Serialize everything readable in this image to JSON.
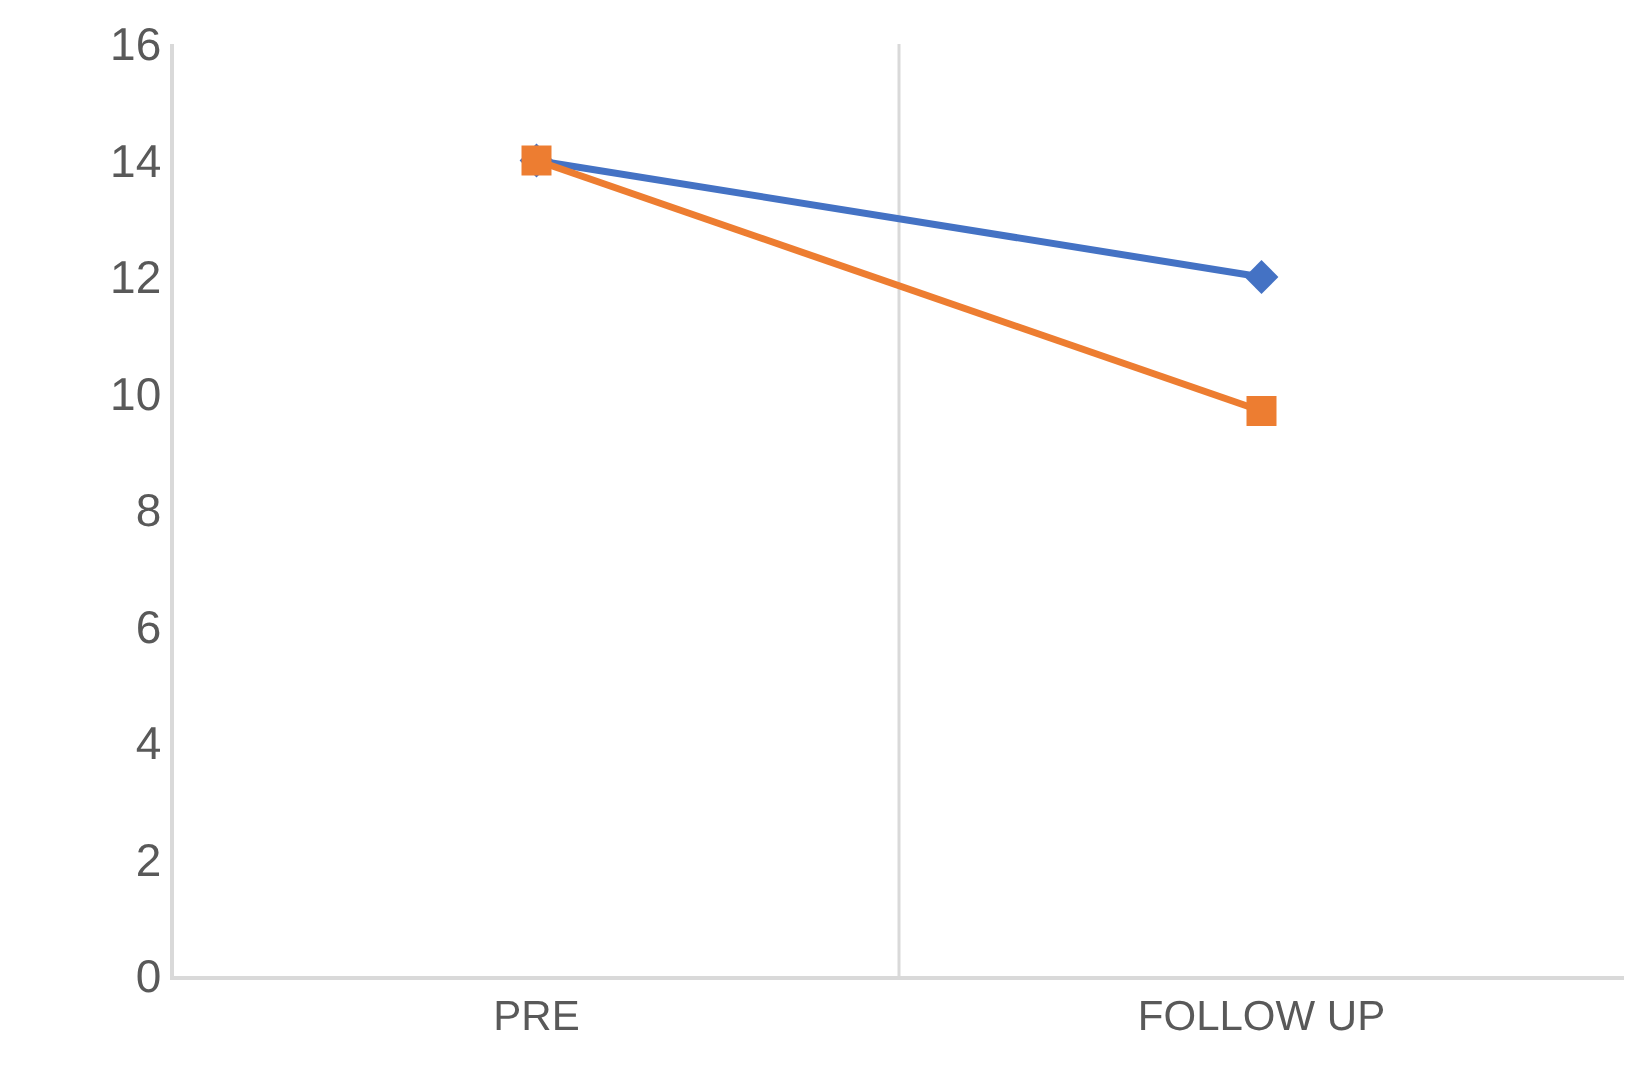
{
  "chart_data": {
    "type": "line",
    "categories": [
      "PRE",
      "FOLLOW UP"
    ],
    "series": [
      {
        "color": "#4472c4",
        "marker": "diamond",
        "values": [
          14,
          12
        ]
      },
      {
        "color": "#ed7d31",
        "marker": "square",
        "values": [
          14,
          9.7
        ]
      }
    ],
    "ylim": [
      0,
      16
    ],
    "yticks": [
      0,
      2,
      4,
      6,
      8,
      10,
      12,
      14,
      16
    ],
    "grid": "x"
  }
}
